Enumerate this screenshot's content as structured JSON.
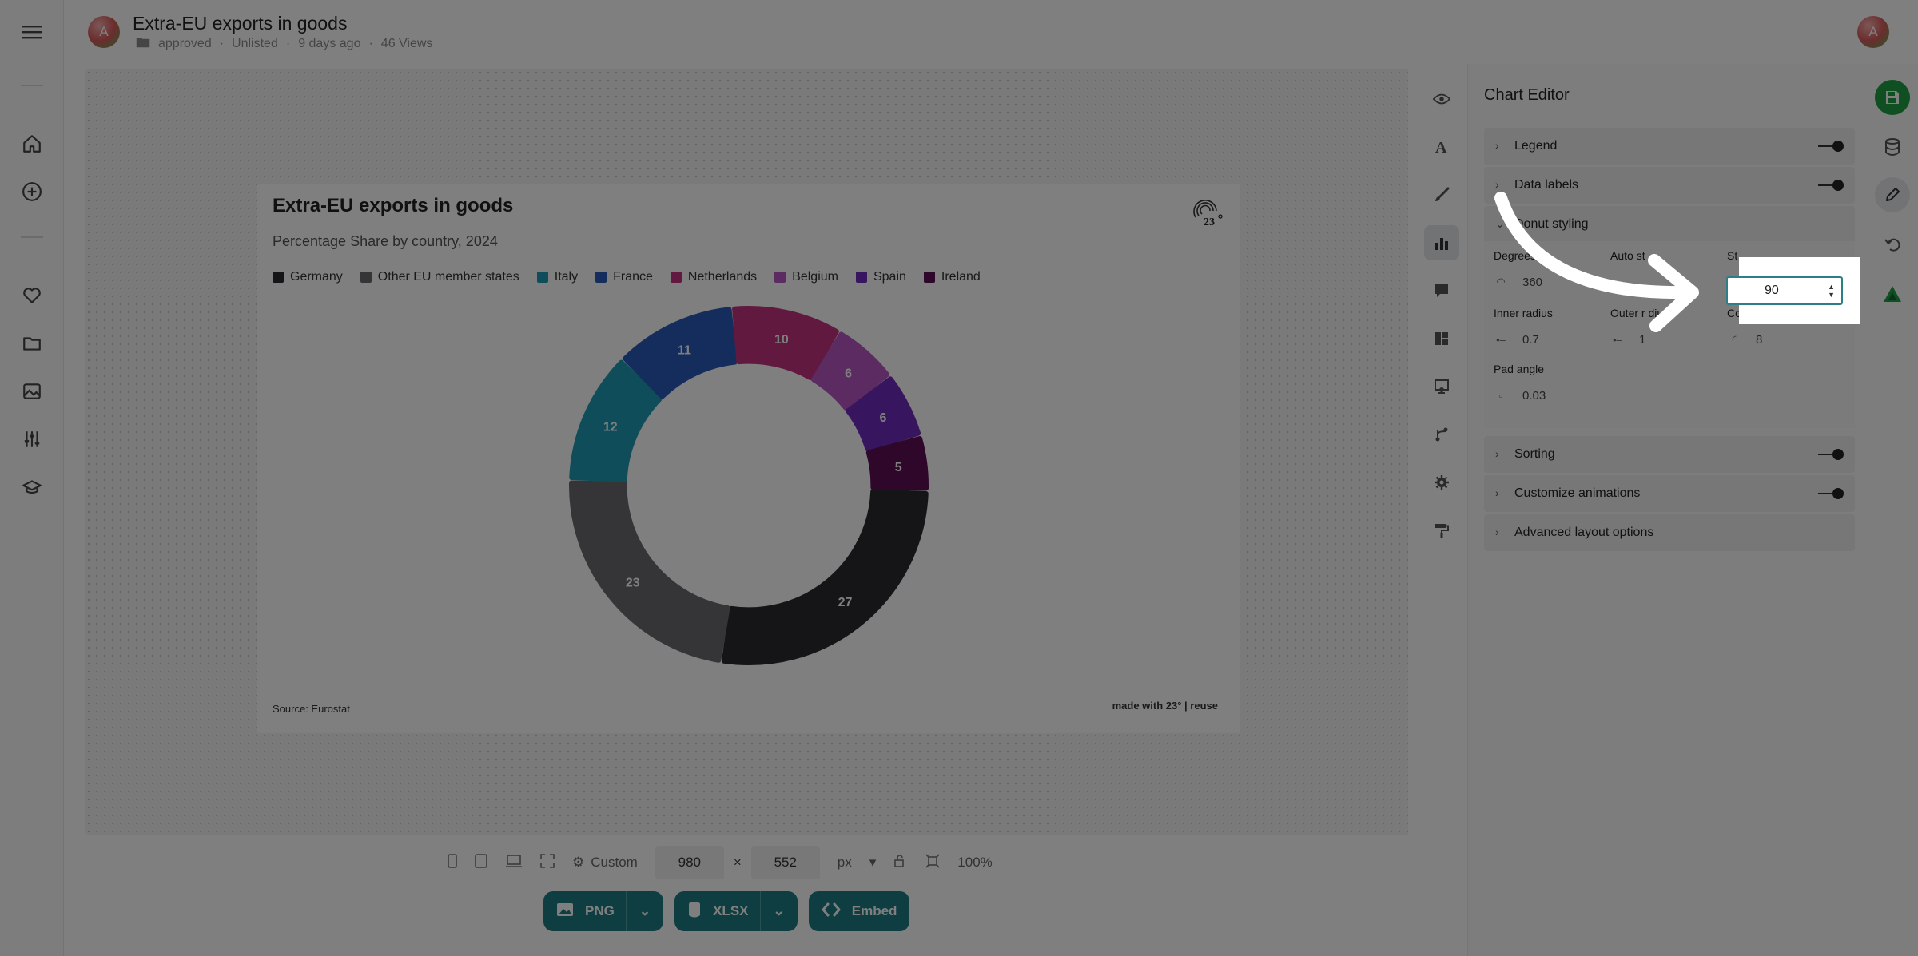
{
  "header": {
    "avatar_letter": "A",
    "title": "Extra-EU exports in goods",
    "folder": "approved",
    "visibility": "Unlisted",
    "age": "9 days ago",
    "views": "46 Views",
    "user_avatar_letter": "A"
  },
  "chart_card": {
    "title": "Extra-EU exports in goods",
    "subtitle": "Percentage Share by country, 2024",
    "source": "Source: Eurostat",
    "made_with": "made with 23° | reuse"
  },
  "chart_data": {
    "type": "pie",
    "title": "Extra-EU exports in goods",
    "subtitle": "Percentage Share by country, 2024",
    "legend_position": "top-left",
    "slices": [
      {
        "name": "Germany",
        "value": 27,
        "label": "27",
        "color": "#2b2b30"
      },
      {
        "name": "Other EU member states",
        "value": 23,
        "label": "23",
        "color": "#6a6a70"
      },
      {
        "name": "Italy",
        "value": 12,
        "label": "12",
        "color": "#1f9bb7"
      },
      {
        "name": "France",
        "value": 11,
        "label": "11",
        "color": "#2a5bb8"
      },
      {
        "name": "Netherlands",
        "value": 10,
        "label": "10",
        "color": "#c2337f"
      },
      {
        "name": "Belgium",
        "value": 6,
        "label": "6",
        "color": "#b657c2"
      },
      {
        "name": "Spain",
        "value": 6,
        "label": "6",
        "color": "#6f2bbf"
      },
      {
        "name": "Ireland",
        "value": 5,
        "label": "5",
        "color": "#5c0f55"
      }
    ],
    "donut": {
      "inner_radius": 0.7,
      "outer_radius": 1,
      "degrees": 360,
      "pad_angle": 0.03,
      "corner_radius": 8
    }
  },
  "legend": [
    {
      "label": "Germany",
      "color": "#2b2b30"
    },
    {
      "label": "Other EU member states",
      "color": "#6a6a70"
    },
    {
      "label": "Italy",
      "color": "#1f9bb7"
    },
    {
      "label": "France",
      "color": "#2a5bb8"
    },
    {
      "label": "Netherlands",
      "color": "#c2337f"
    },
    {
      "label": "Belgium",
      "color": "#b657c2"
    },
    {
      "label": "Spain",
      "color": "#6f2bbf"
    },
    {
      "label": "Ireland",
      "color": "#5c0f55"
    }
  ],
  "editor": {
    "title": "Chart Editor",
    "sections": {
      "legend": "Legend",
      "data_labels": "Data labels",
      "donut_styling": "Donut styling",
      "sorting": "Sorting",
      "animations": "Customize animations",
      "advanced": "Advanced layout options"
    },
    "fields": {
      "degrees_label": "Degrees",
      "degrees_value": "360",
      "auto_label": "Auto st",
      "start_label": "St",
      "start_value": "90",
      "inner_label": "Inner radius",
      "inner_value": "0.7",
      "outer_label": "Outer r dius",
      "outer_value": "1",
      "corner_label": "Co",
      "corner_value": "8",
      "pad_label": "Pad angle",
      "pad_value": "0.03"
    }
  },
  "sizebar": {
    "preset": "Custom",
    "width": "980",
    "times": "×",
    "height": "552",
    "unit": "px",
    "zoom": "100%"
  },
  "export": {
    "png": "PNG",
    "xlsx": "XLSX",
    "embed": "Embed"
  },
  "colors": {
    "accent": "#1f7d84",
    "save": "#1e9e45"
  }
}
